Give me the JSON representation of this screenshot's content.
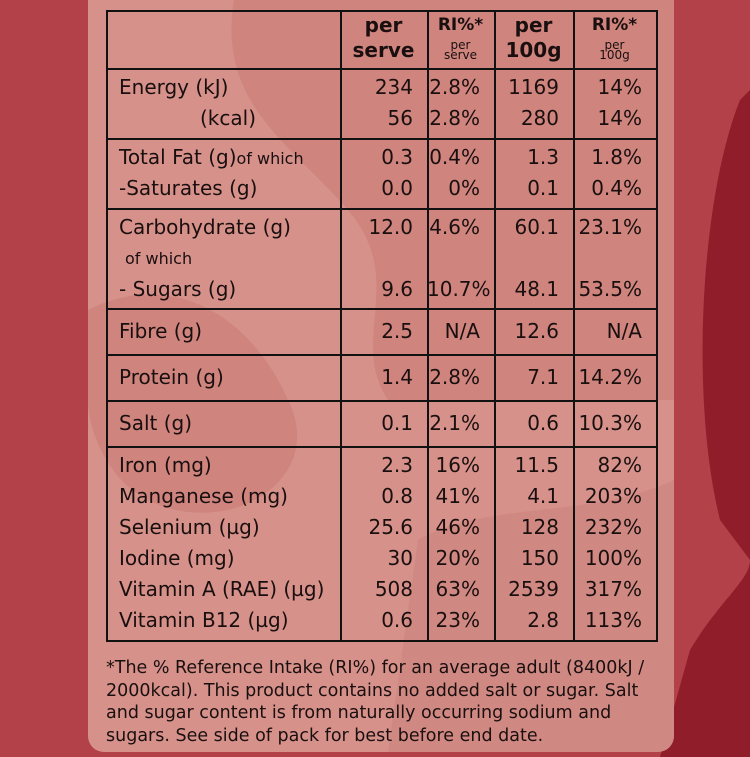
{
  "table": {
    "header": [
      {
        "line1": "per",
        "line2": "serve"
      },
      {
        "label": "RI%*",
        "sub1": "per",
        "sub2": "serve"
      },
      {
        "line1": "per",
        "line2": "100g"
      },
      {
        "label": "RI%*",
        "sub1": "per",
        "sub2": "100g"
      }
    ],
    "groups": [
      {
        "lines": [
          {
            "name": "Energy  (kJ)",
            "values": [
              "234",
              "2.8%",
              "1169",
              "14%"
            ]
          },
          {
            "name": "(kcal)",
            "values": [
              "56",
              "2.8%",
              "280",
              "14%"
            ]
          }
        ]
      },
      {
        "lines": [
          {
            "name": "Total Fat (g)",
            "note": "of which",
            "values": [
              "0.3",
              "0.4%",
              "1.3",
              "1.8%"
            ]
          },
          {
            "name": "-Saturates (g)",
            "values": [
              "0.0",
              "0%",
              "0.1",
              "0.4%"
            ]
          }
        ]
      },
      {
        "lines": [
          {
            "name": "Carbohydrate (g)",
            "values": [
              "12.0",
              "4.6%",
              "60.1",
              "23.1%"
            ]
          },
          {
            "note": "of which"
          },
          {
            "name": "- Sugars (g)",
            "values": [
              "9.6",
              "10.7%",
              "48.1",
              "53.5%"
            ]
          }
        ]
      },
      {
        "lines": [
          {
            "name": "Fibre (g)",
            "values": [
              "2.5",
              "N/A",
              "12.6",
              "N/A"
            ]
          }
        ]
      },
      {
        "lines": [
          {
            "name": "Protein (g)",
            "values": [
              "1.4",
              "2.8%",
              "7.1",
              "14.2%"
            ]
          }
        ]
      },
      {
        "lines": [
          {
            "name": "Salt (g)",
            "values": [
              "0.1",
              "2.1%",
              "0.6",
              "10.3%"
            ]
          }
        ]
      },
      {
        "lines": [
          {
            "name": "Iron (mg)",
            "values": [
              "2.3",
              "16%",
              "11.5",
              "82%"
            ]
          },
          {
            "name": "Manganese (mg)",
            "values": [
              "0.8",
              "41%",
              "4.1",
              "203%"
            ]
          },
          {
            "name": "Selenium (µg)",
            "values": [
              "25.6",
              "46%",
              "128",
              "232%"
            ]
          },
          {
            "name": "Iodine (mg)",
            "values": [
              "30",
              "20%",
              "150",
              "100%"
            ]
          },
          {
            "name": "Vitamin A (RAE) (µg)",
            "values": [
              "508",
              "63%",
              "2539",
              "317%"
            ]
          },
          {
            "name": "Vitamin B12 (µg)",
            "values": [
              "0.6",
              "23%",
              "2.8",
              "113%"
            ]
          }
        ]
      }
    ]
  },
  "footnote": "*The % Reference Intake (RI%) for an average adult (8400kJ / 2000kcal). This product contains no added salt or sugar. Salt and sugar content is from naturally occurring sodium and sugars. See side of pack for best before end date."
}
